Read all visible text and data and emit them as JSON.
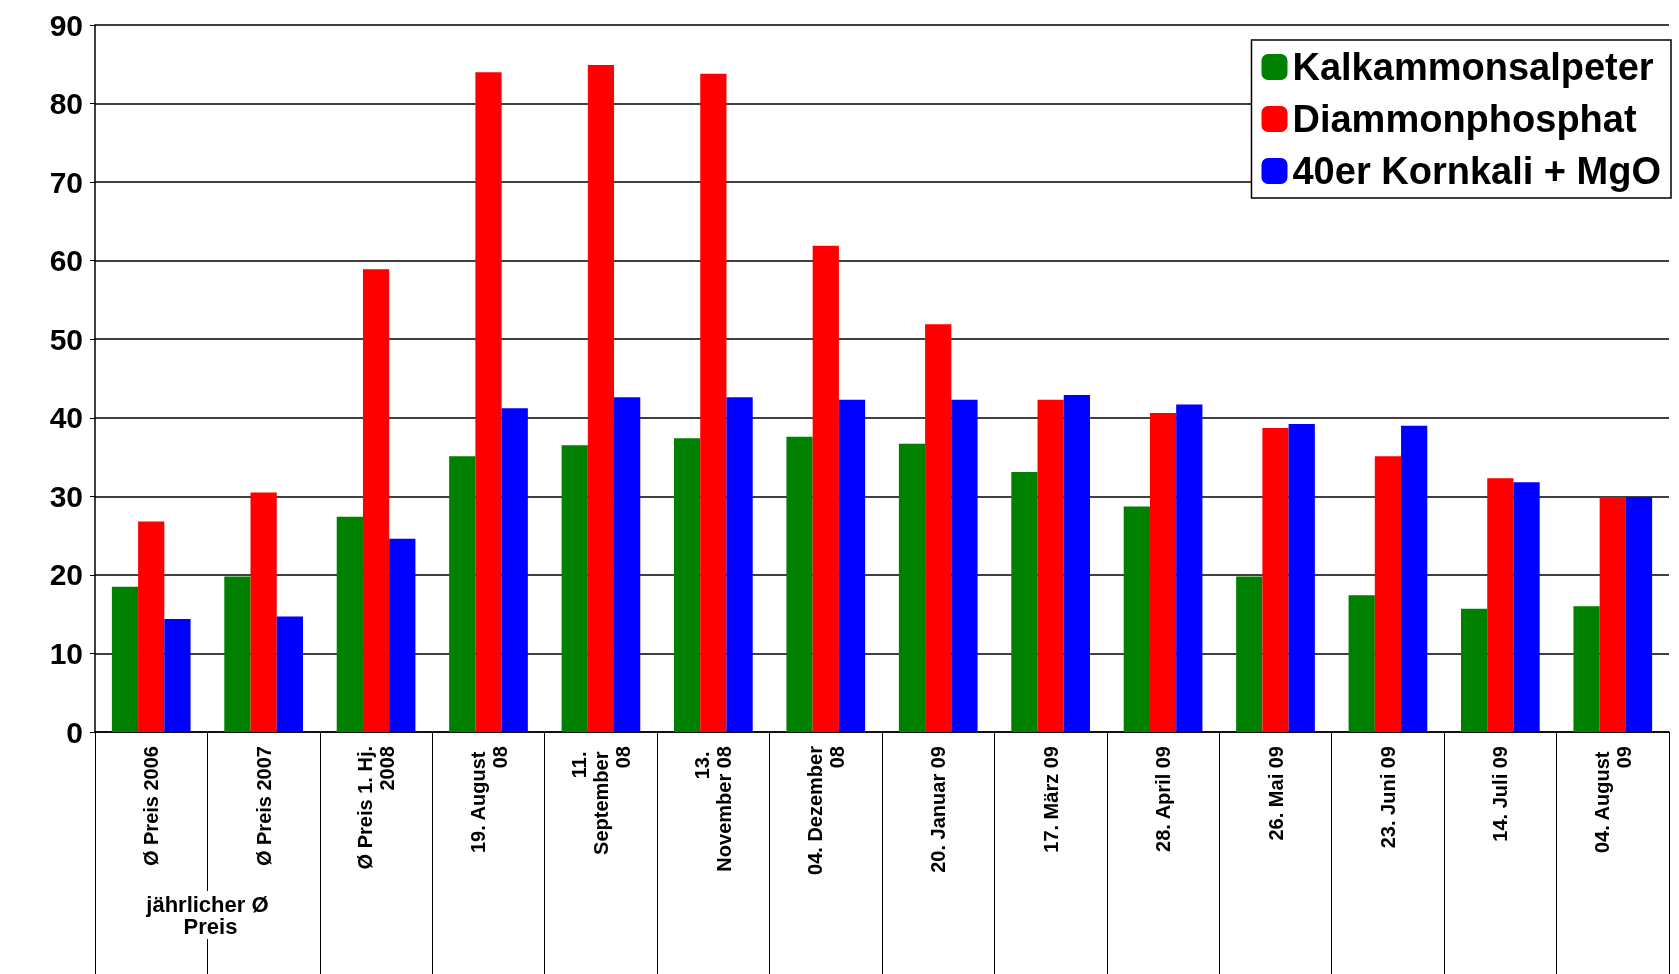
{
  "chart_data": {
    "type": "bar",
    "categories": [
      "Ø Preis 2006",
      "Ø Preis 2007",
      "Ø Preis 1. Hj. 2008",
      "19. August 08",
      "11. September 08",
      "13. November 08",
      "04. Dezember 08",
      "20. Januar 09",
      "17. März 09",
      "28. April 09",
      "26. Mai 09",
      "23. Juni 09",
      "14. Juli 09",
      "04. August 09"
    ],
    "series": [
      {
        "name": "Kalkammonsalpeter",
        "color": "#008000",
        "values": [
          18.5,
          19.8,
          27.4,
          35.1,
          36.5,
          37.4,
          37.6,
          36.7,
          33.1,
          28.7,
          19.8,
          17.4,
          15.7,
          16.0
        ]
      },
      {
        "name": "Diammonphosphat",
        "color": "#ff0000",
        "values": [
          26.8,
          30.5,
          58.9,
          84.0,
          84.9,
          83.8,
          61.9,
          51.9,
          42.3,
          40.6,
          38.7,
          35.1,
          32.3,
          29.9
        ]
      },
      {
        "name": "40er Kornkali + MgO",
        "color": "#0000ff",
        "values": [
          14.4,
          14.7,
          24.6,
          41.2,
          42.6,
          42.6,
          42.3,
          42.3,
          42.9,
          41.7,
          39.2,
          39.0,
          31.8,
          29.9
        ]
      }
    ],
    "ylim": [
      0,
      90
    ],
    "yticks": [
      0,
      10,
      20,
      30,
      40,
      50,
      60,
      70,
      80,
      90
    ],
    "grid": "y",
    "legend": "top right",
    "annotations": [
      "jährlicher Ø Preis"
    ]
  }
}
